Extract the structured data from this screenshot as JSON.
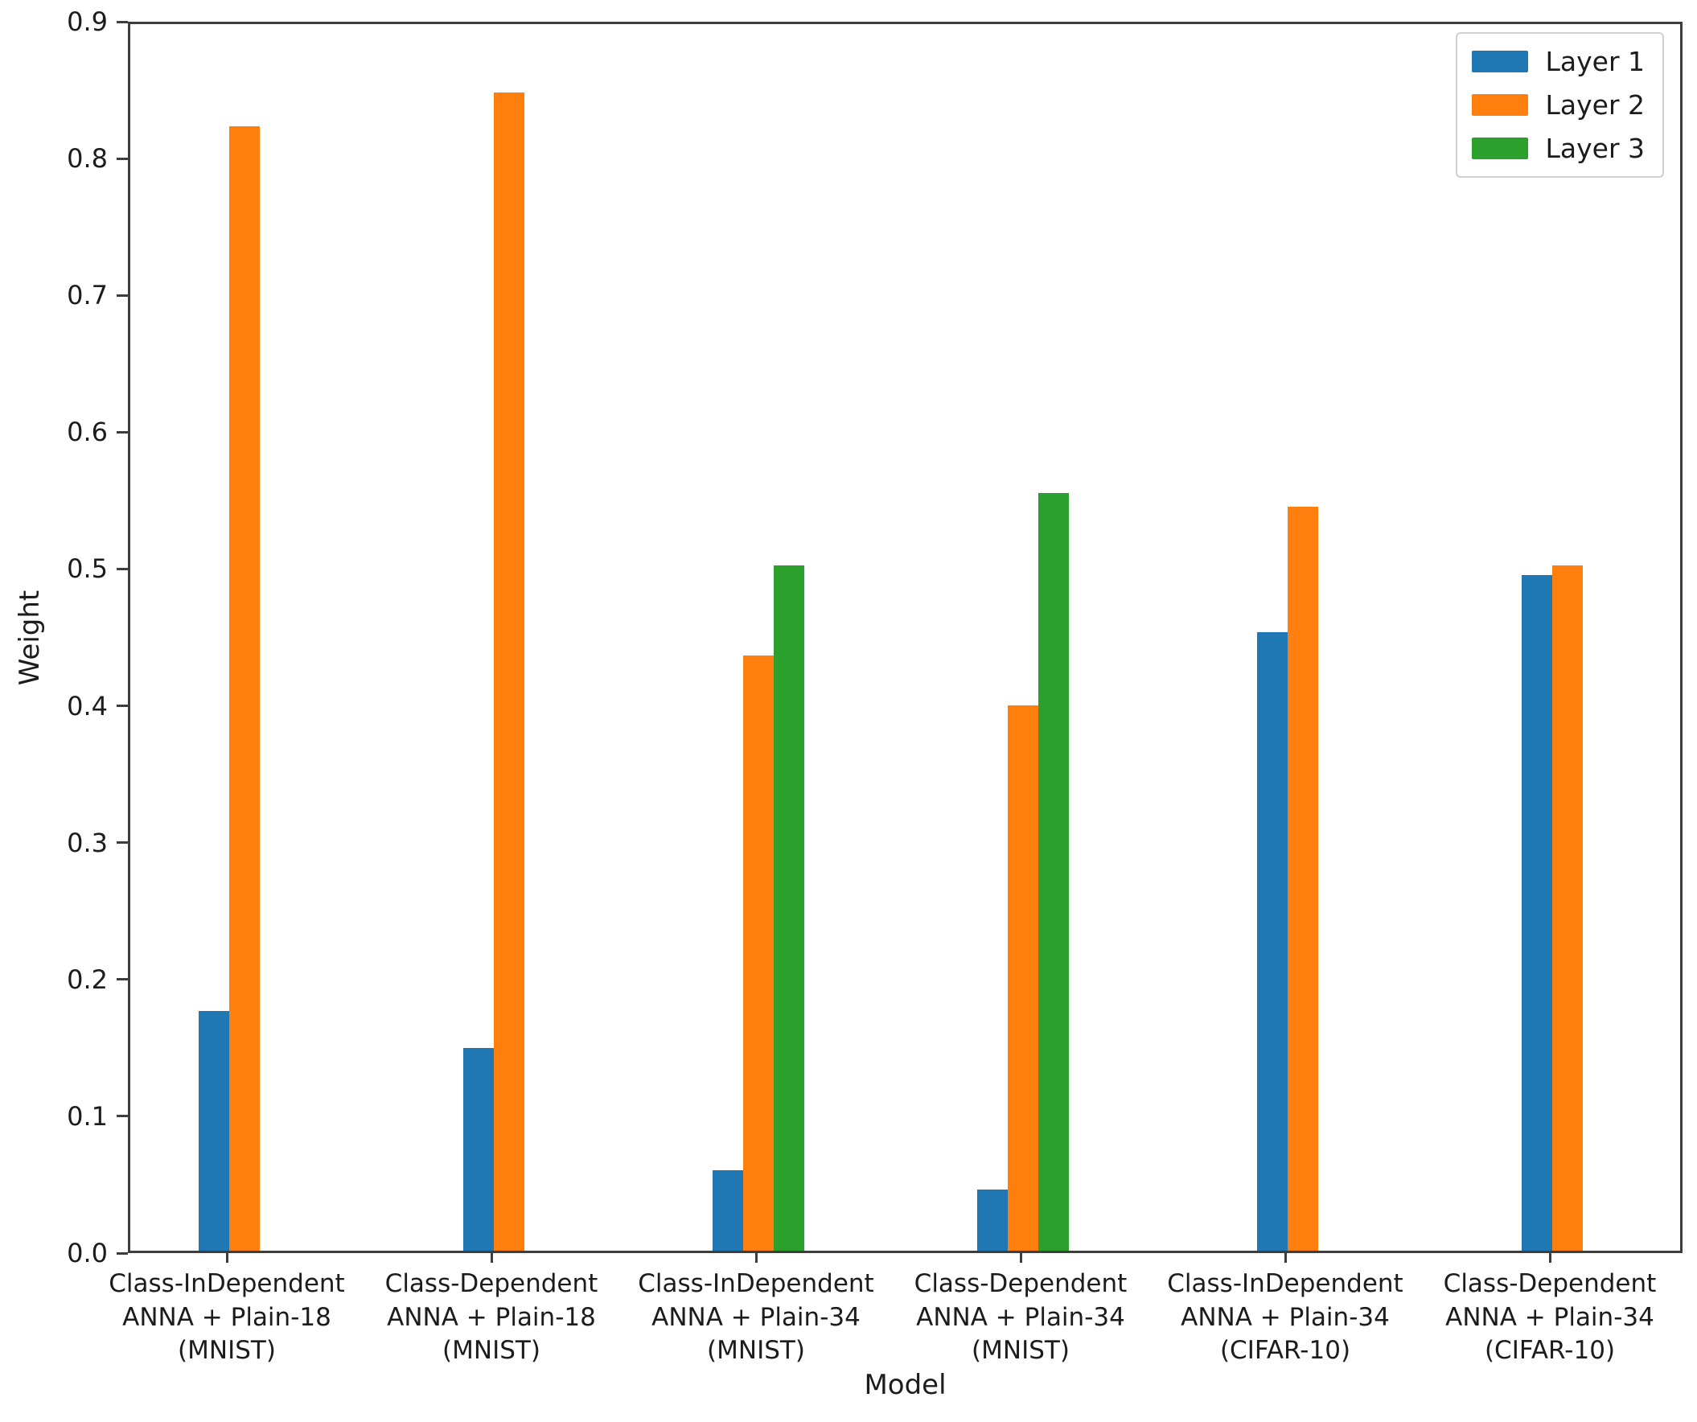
{
  "chart_data": {
    "type": "bar",
    "title": "",
    "xlabel": "Model",
    "ylabel": "Weight",
    "ylim": [
      0.0,
      0.9
    ],
    "ytick_step": 0.1,
    "ytick_labels": [
      "0.0",
      "0.1",
      "0.2",
      "0.3",
      "0.4",
      "0.5",
      "0.6",
      "0.7",
      "0.8",
      "0.9"
    ],
    "grid": false,
    "legend_position": "upper right",
    "categories": [
      "Class-InDependent\nANNA + Plain-18\n(MNIST)",
      "Class-Dependent\nANNA + Plain-18\n(MNIST)",
      "Class-InDependent\nANNA + Plain-34\n(MNIST)",
      "Class-Dependent\nANNA + Plain-34\n(MNIST)",
      "Class-InDependent\nANNA + Plain-34\n(CIFAR-10)",
      "Class-Dependent\nANNA + Plain-34\n(CIFAR-10)"
    ],
    "series": [
      {
        "name": "Layer 1",
        "color": "#1f77b4",
        "values": [
          0.176,
          0.149,
          0.059,
          0.045,
          0.454,
          0.496
        ]
      },
      {
        "name": "Layer 2",
        "color": "#ff7f0e",
        "values": [
          0.825,
          0.85,
          0.437,
          0.4,
          0.546,
          0.503
        ]
      },
      {
        "name": "Layer 3",
        "color": "#2ca02c",
        "values": [
          0,
          0,
          0.503,
          0.556,
          0,
          0
        ]
      }
    ]
  },
  "colors": {
    "spine": "#3d3d3d",
    "text": "#1c1c1c",
    "legend_border": "#cfcfcf",
    "background": "#ffffff"
  }
}
